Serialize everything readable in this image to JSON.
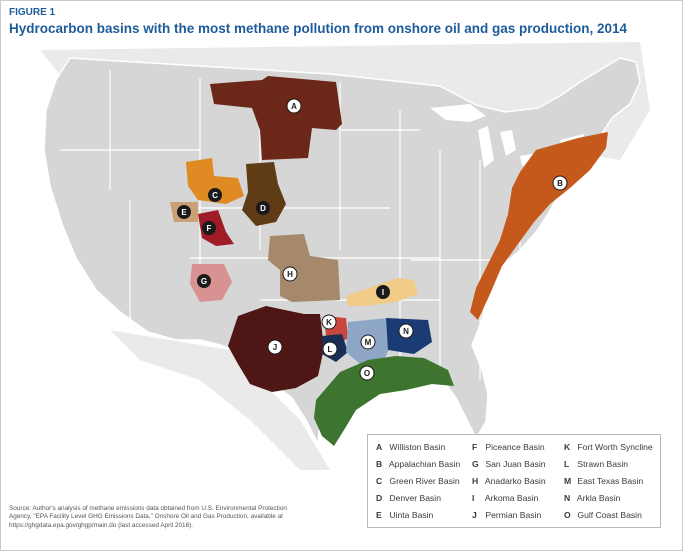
{
  "figure_label": "FIGURE 1",
  "title": "Hydrocarbon basins with the most methane pollution from onshore oil and gas production, 2014",
  "colors": {
    "states": "#d6d6d6",
    "state_borders": "#ffffff",
    "outer_land": "#eaeaea",
    "water": "#ffffff",
    "title": "#1d5c9a"
  },
  "basins": [
    {
      "letter": "A",
      "name": "Williston Basin",
      "color": "#6b2718"
    },
    {
      "letter": "B",
      "name": "Appalachian Basin",
      "color": "#c5591c"
    },
    {
      "letter": "C",
      "name": "Green River Basin",
      "color": "#e08a23"
    },
    {
      "letter": "D",
      "name": "Denver Basin",
      "color": "#5f3b16"
    },
    {
      "letter": "E",
      "name": "Uinta Basin",
      "color": "#c9a173"
    },
    {
      "letter": "F",
      "name": "Piceance Basin",
      "color": "#9f1c27"
    },
    {
      "letter": "G",
      "name": "San Juan Basin",
      "color": "#d99292"
    },
    {
      "letter": "H",
      "name": "Anadarko Basin",
      "color": "#a5896a"
    },
    {
      "letter": "I",
      "name": "Arkoma Basin",
      "color": "#f0cc88"
    },
    {
      "letter": "J",
      "name": "Permian Basin",
      "color": "#4e1716"
    },
    {
      "letter": "K",
      "name": "Fort Worth Syncline",
      "color": "#c8463b"
    },
    {
      "letter": "L",
      "name": "Strawn Basin",
      "color": "#1a2f55"
    },
    {
      "letter": "M",
      "name": "East Texas Basin",
      "color": "#8fa7c6"
    },
    {
      "letter": "N",
      "name": "Arkla Basin",
      "color": "#1b3b75"
    },
    {
      "letter": "O",
      "name": "Gulf Coast Basin",
      "color": "#3d7430"
    }
  ],
  "legend": [
    {
      "letter": "A",
      "name": "Williston Basin"
    },
    {
      "letter": "B",
      "name": "Appalachian Basin"
    },
    {
      "letter": "C",
      "name": "Green River Basin"
    },
    {
      "letter": "D",
      "name": "Denver Basin"
    },
    {
      "letter": "E",
      "name": "Uinta Basin"
    },
    {
      "letter": "F",
      "name": "Piceance Basin"
    },
    {
      "letter": "G",
      "name": "San Juan Basin"
    },
    {
      "letter": "H",
      "name": "Anadarko Basin"
    },
    {
      "letter": "I",
      "name": "Arkoma Basin"
    },
    {
      "letter": "J",
      "name": "Permian Basin"
    },
    {
      "letter": "K",
      "name": "Fort Worth Syncline"
    },
    {
      "letter": "L",
      "name": "Strawn Basin"
    },
    {
      "letter": "M",
      "name": "East Texas Basin"
    },
    {
      "letter": "N",
      "name": "Arkla Basin"
    },
    {
      "letter": "O",
      "name": "Gulf Coast Basin"
    }
  ],
  "source": {
    "line1": "Source: Author's analysis of methane emissions data obtained from U.S. Environmental Protection",
    "line2": "Agency, \"EPA Facility Level GHG Emissions Data,\" Onshore Oil and Gas Production, available at",
    "line3": "https://ghgdata.epa.gov/ghgp/main.do (last accessed April 2016)."
  }
}
